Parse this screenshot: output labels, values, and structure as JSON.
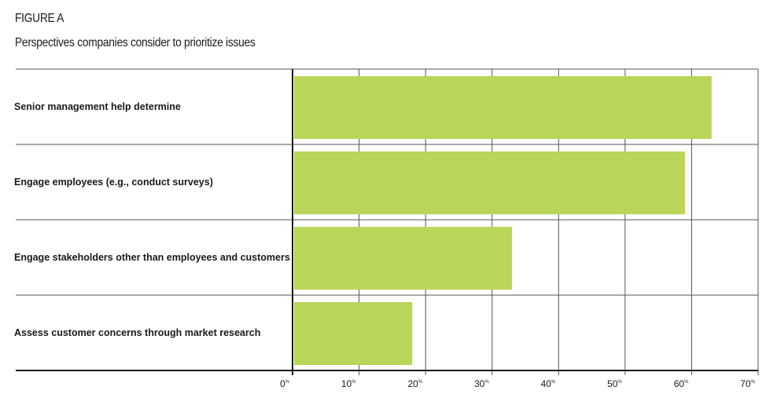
{
  "figure": {
    "label": "FIGURE A",
    "title": "Perspectives companies consider to prioritize issues"
  },
  "colors": {
    "bar": "#b9d55a",
    "axis": "#1a1a1a",
    "grid": "#555555"
  },
  "chart_data": {
    "type": "bar",
    "orientation": "horizontal",
    "categories": [
      "Senior management help determine",
      "Engage employees (e.g., conduct surveys)",
      "Engage stakeholders other than employees and customers",
      "Assess customer concerns through market research"
    ],
    "values": [
      63,
      59,
      33,
      18
    ],
    "xlim": [
      0,
      70
    ],
    "xticks": [
      0,
      10,
      20,
      30,
      40,
      50,
      60,
      70
    ],
    "tick_suffix": "%",
    "grid": true,
    "legend": "none"
  }
}
